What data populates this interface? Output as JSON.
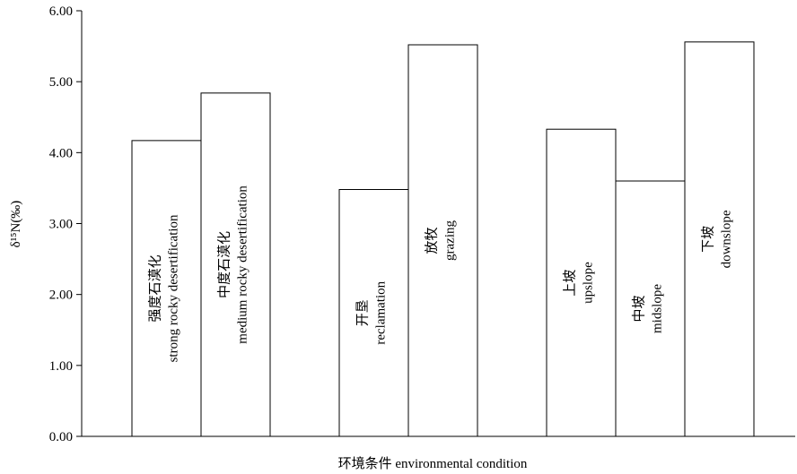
{
  "chart_data": {
    "type": "bar",
    "title": "",
    "xlabel": "环境条件 environmental condition",
    "ylabel": "δ¹⁵N(‰)",
    "ylim": [
      0,
      6
    ],
    "yticks": [
      "0.00",
      "1.00",
      "2.00",
      "3.00",
      "4.00",
      "5.00",
      "6.00"
    ],
    "grid": false,
    "legend": "none",
    "groups": [
      {
        "bars": [
          {
            "label_cn": "强度石漠化",
            "label_en": "strong rocky desertification",
            "value": 4.17
          },
          {
            "label_cn": "中度石漠化",
            "label_en": "medium rocky desertification",
            "value": 4.84
          }
        ]
      },
      {
        "bars": [
          {
            "label_cn": "开垦",
            "label_en": "reclamation",
            "value": 3.48
          },
          {
            "label_cn": "放牧",
            "label_en": "grazing",
            "value": 5.52
          }
        ]
      },
      {
        "bars": [
          {
            "label_cn": "上坡",
            "label_en": "upslope",
            "value": 4.33
          },
          {
            "label_cn": "中坡",
            "label_en": "midslope",
            "value": 3.6
          },
          {
            "label_cn": "下坡",
            "label_en": "downslope",
            "value": 5.56
          }
        ]
      }
    ],
    "bar_fill": "#ffffff",
    "bar_stroke": "#000000"
  }
}
